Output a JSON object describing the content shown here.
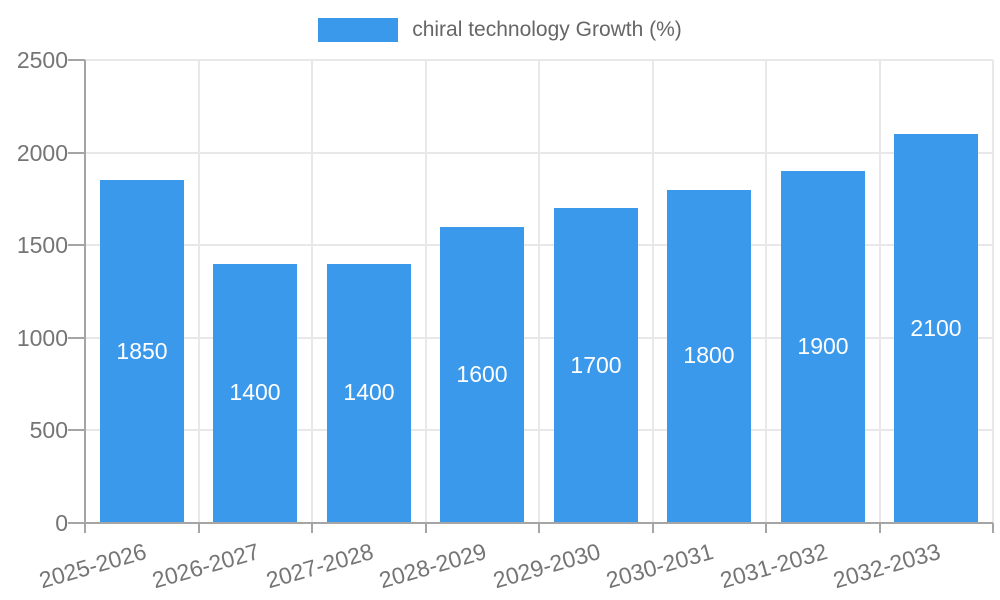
{
  "legend": {
    "label": "chiral technology Growth (%)"
  },
  "chart_data": {
    "type": "bar",
    "title": "",
    "series_name": "chiral technology Growth (%)",
    "categories": [
      "2025-2026",
      "2026-2027",
      "2027-2028",
      "2028-2029",
      "2029-2030",
      "2030-2031",
      "2031-2032",
      "2032-2033"
    ],
    "values": [
      1850,
      1400,
      1400,
      1600,
      1700,
      1800,
      1900,
      2100
    ],
    "xlabel": "",
    "ylabel": "",
    "ylim": [
      0,
      2500
    ],
    "yticks": [
      0,
      500,
      1000,
      1500,
      2000,
      2500
    ],
    "grid": true,
    "legend_position": "top",
    "value_label_position": "inside-center",
    "x_tick_rotation_deg": -16,
    "colors": {
      "bar": "#3b99ec",
      "grid": "#e8e8e8",
      "axis": "#a5a5a5",
      "tick_text": "#757575",
      "legend_text": "#666666",
      "value_text": "#ffffff",
      "background": "#ffffff"
    }
  }
}
